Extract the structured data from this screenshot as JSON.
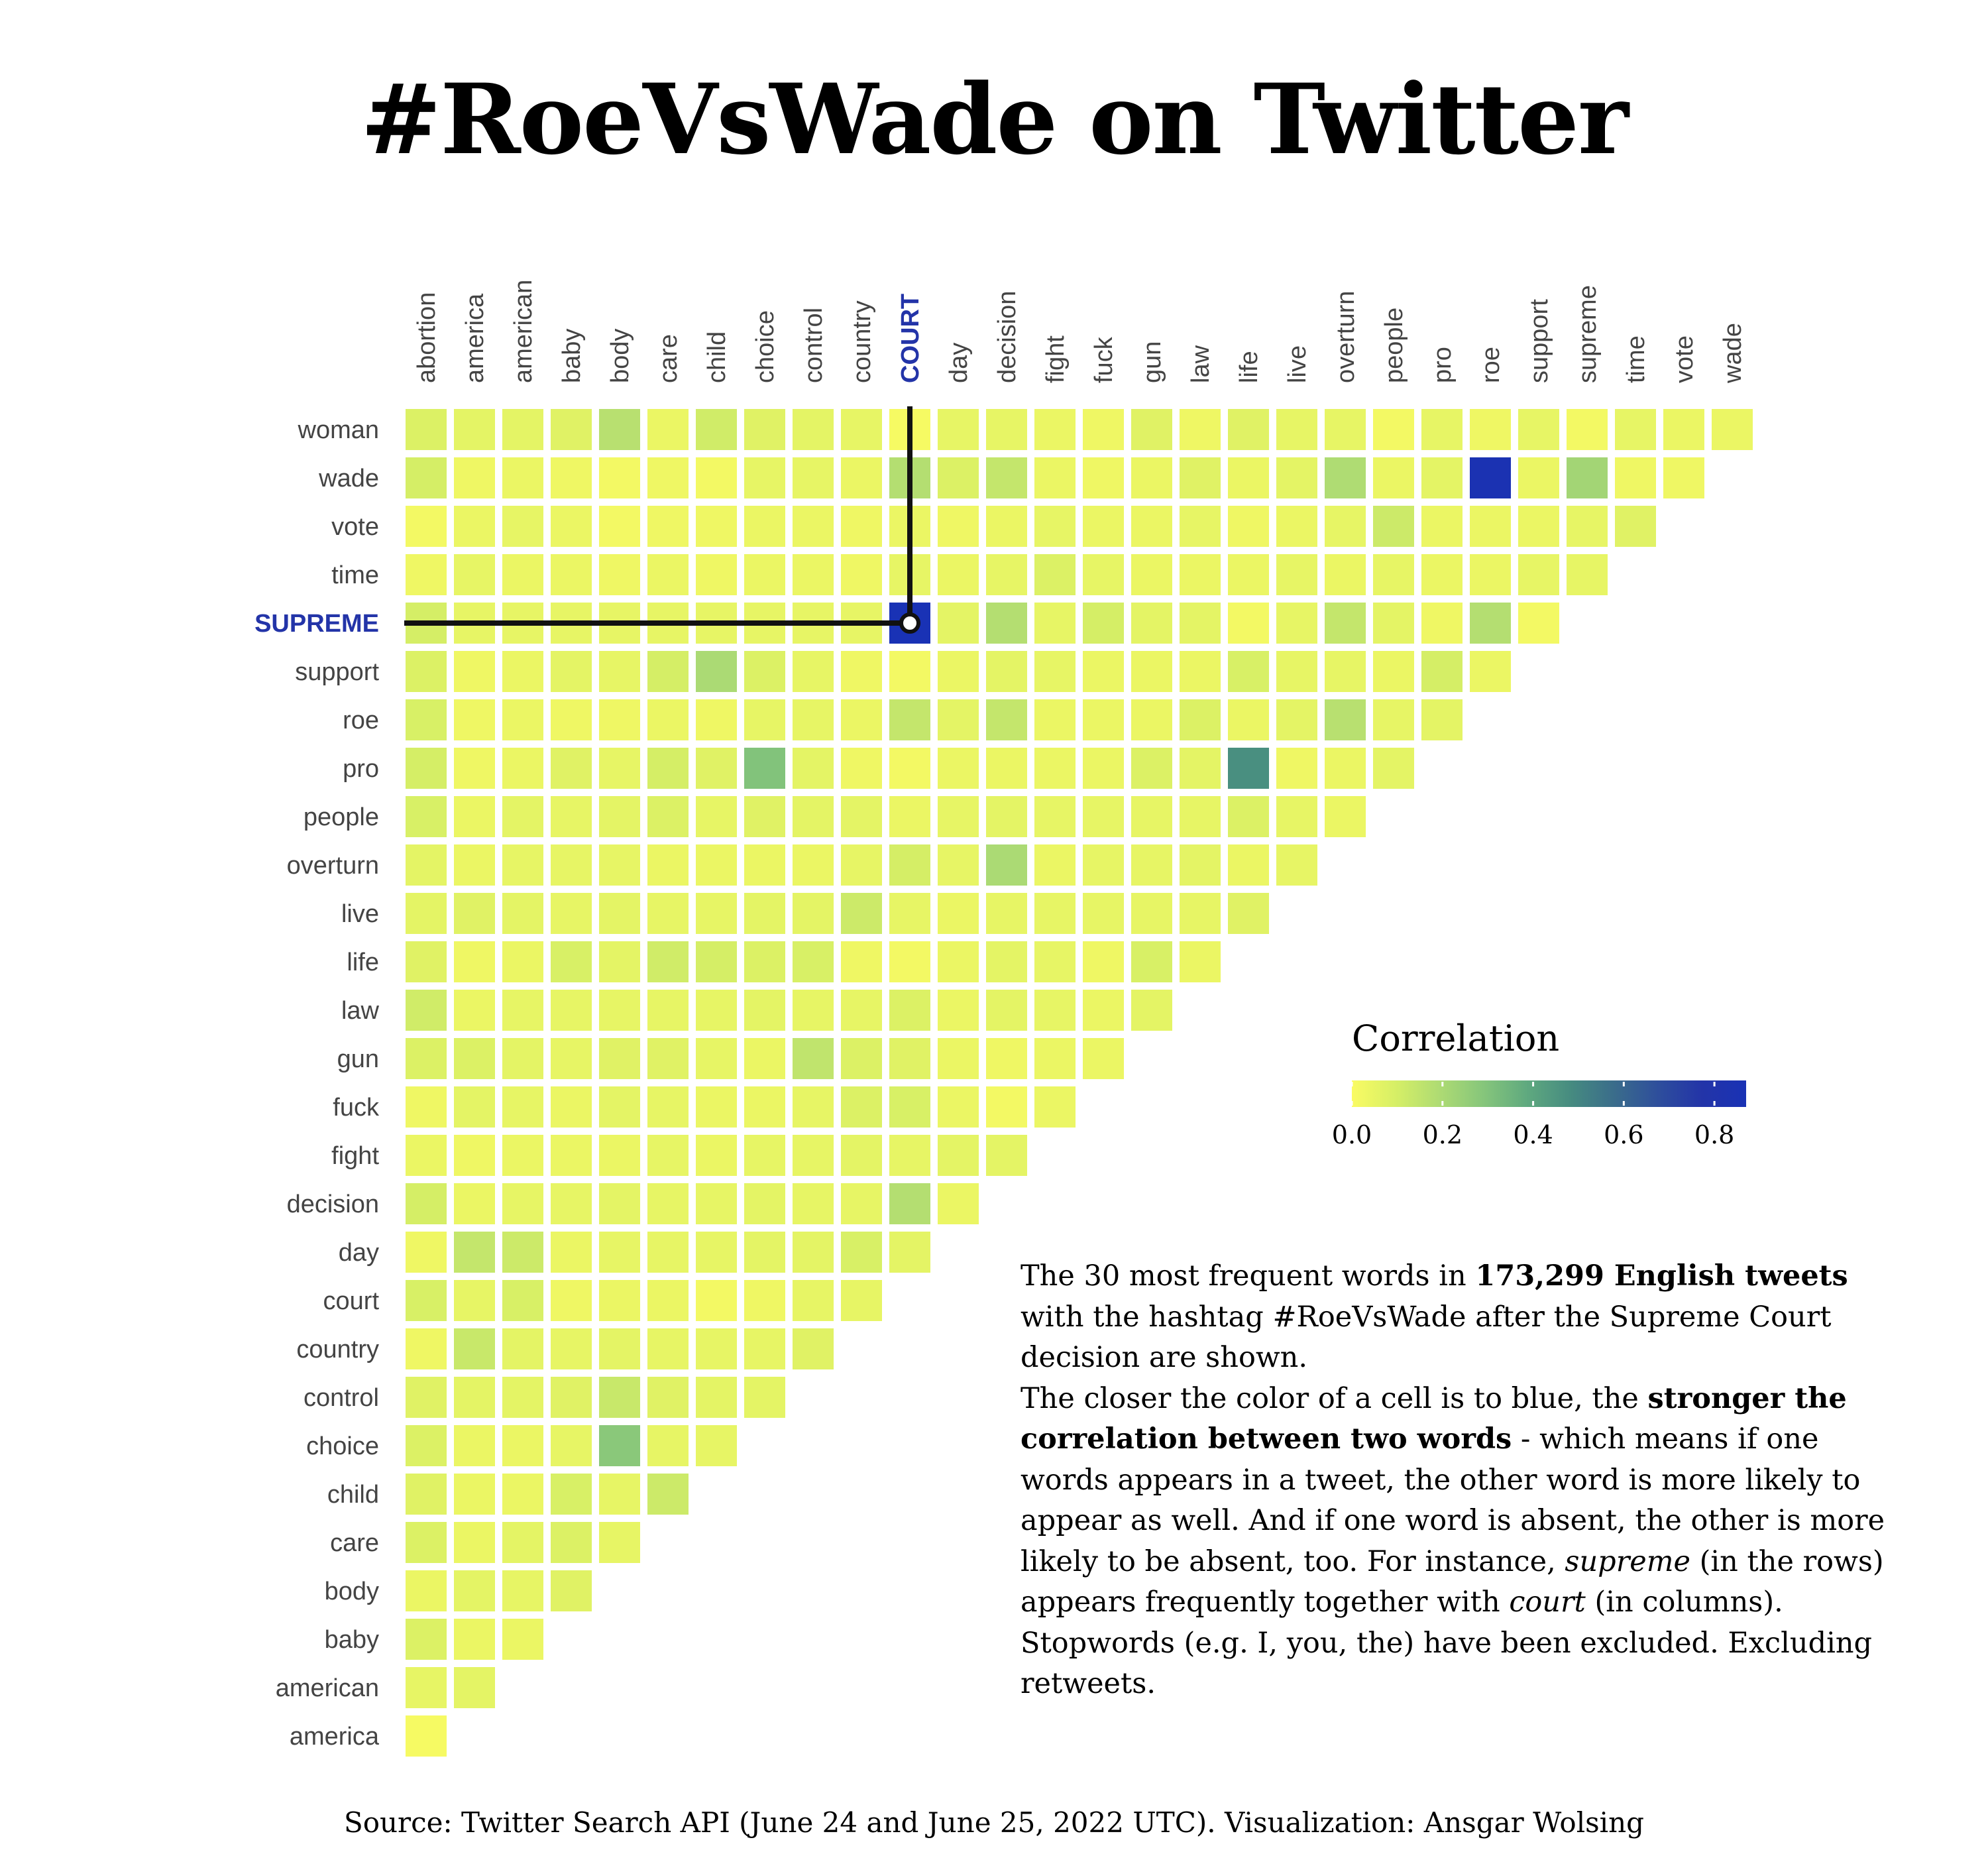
{
  "page": {
    "title": "#RoeVsWade on Twitter",
    "source": "Source: Twitter Search API (June 24 and June 25, 2022 UTC). Visualization: Ansgar Wolsing",
    "description": [
      [
        {
          "t": "The 30 most frequent words in "
        },
        {
          "t": "173,299 English tweets",
          "b": true
        },
        {
          "t": " with the hashtag #RoeVsWade after the Supreme Court decision are shown."
        }
      ],
      [
        {
          "t": "The closer the color of a cell is to blue, the "
        },
        {
          "t": "stronger the correlation between two words",
          "b": true
        },
        {
          "t": " - which means if one words appears in a tweet, the other word is more likely to appear as well. And if one word is absent, the other is more likely to be absent, too. For instance, "
        },
        {
          "t": "supreme",
          "i": true
        },
        {
          "t": " (in the rows) appears frequently together with "
        },
        {
          "t": "court",
          "i": true
        },
        {
          "t": " (in columns)."
        }
      ],
      [
        {
          "t": "Stopwords (e.g. I, you, the) have been excluded. Excluding retweets."
        }
      ]
    ]
  },
  "chart_data": {
    "type": "heatmap",
    "title": "#RoeVsWade on Twitter",
    "columns": [
      "abortion",
      "america",
      "american",
      "baby",
      "body",
      "care",
      "child",
      "choice",
      "control",
      "country",
      "COURT",
      "day",
      "decision",
      "fight",
      "fuck",
      "gun",
      "law",
      "life",
      "live",
      "overturn",
      "people",
      "pro",
      "roe",
      "support",
      "supreme",
      "time",
      "vote",
      "wade"
    ],
    "rows": [
      "woman",
      "wade",
      "vote",
      "time",
      "SUPREME",
      "support",
      "roe",
      "pro",
      "people",
      "overturn",
      "live",
      "life",
      "law",
      "gun",
      "fuck",
      "fight",
      "decision",
      "day",
      "court",
      "country",
      "control",
      "choice",
      "child",
      "care",
      "body",
      "baby",
      "american",
      "america"
    ],
    "highlight": {
      "row": "SUPREME",
      "column": "COURT",
      "value": 0.87
    },
    "values": [
      [
        0.08,
        0.06,
        0.06,
        0.07,
        0.17,
        0.04,
        0.11,
        0.07,
        0.06,
        0.05,
        0.01,
        0.05,
        0.05,
        0.04,
        0.03,
        0.07,
        0.03,
        0.07,
        0.05,
        0.05,
        0.02,
        0.05,
        0.03,
        0.05,
        0.02,
        0.05,
        0.04,
        0.04
      ],
      [
        0.1,
        0.03,
        0.04,
        0.03,
        0.02,
        0.03,
        0.02,
        0.05,
        0.05,
        0.04,
        0.18,
        0.08,
        0.14,
        0.04,
        0.03,
        0.04,
        0.07,
        0.04,
        0.06,
        0.19,
        0.04,
        0.06,
        0.85,
        0.04,
        0.22,
        0.03,
        0.03
      ],
      [
        0.02,
        0.04,
        0.05,
        0.04,
        0.02,
        0.03,
        0.03,
        0.04,
        0.04,
        0.03,
        0.04,
        0.03,
        0.04,
        0.05,
        0.04,
        0.04,
        0.05,
        0.03,
        0.04,
        0.05,
        0.12,
        0.04,
        0.04,
        0.04,
        0.05,
        0.07
      ],
      [
        0.03,
        0.05,
        0.04,
        0.04,
        0.03,
        0.04,
        0.03,
        0.04,
        0.04,
        0.03,
        0.05,
        0.04,
        0.05,
        0.08,
        0.05,
        0.04,
        0.04,
        0.04,
        0.05,
        0.04,
        0.05,
        0.04,
        0.04,
        0.05,
        0.05
      ],
      [
        0.1,
        0.05,
        0.05,
        0.05,
        0.05,
        0.05,
        0.05,
        0.05,
        0.05,
        0.05,
        0.87,
        0.06,
        0.18,
        0.05,
        0.1,
        0.06,
        0.06,
        0.02,
        0.05,
        0.14,
        0.06,
        0.03,
        0.18,
        0.02
      ],
      [
        0.08,
        0.03,
        0.04,
        0.06,
        0.05,
        0.1,
        0.2,
        0.08,
        0.05,
        0.03,
        0.02,
        0.04,
        0.06,
        0.05,
        0.04,
        0.04,
        0.04,
        0.09,
        0.05,
        0.05,
        0.04,
        0.1,
        0.04
      ],
      [
        0.09,
        0.03,
        0.04,
        0.03,
        0.03,
        0.04,
        0.03,
        0.05,
        0.05,
        0.04,
        0.14,
        0.06,
        0.14,
        0.04,
        0.04,
        0.04,
        0.08,
        0.04,
        0.06,
        0.17,
        0.05,
        0.06
      ],
      [
        0.1,
        0.03,
        0.04,
        0.07,
        0.05,
        0.1,
        0.07,
        0.3,
        0.06,
        0.03,
        0.02,
        0.04,
        0.04,
        0.04,
        0.04,
        0.08,
        0.06,
        0.47,
        0.03,
        0.04,
        0.06
      ],
      [
        0.09,
        0.04,
        0.06,
        0.05,
        0.06,
        0.08,
        0.05,
        0.07,
        0.06,
        0.06,
        0.04,
        0.05,
        0.06,
        0.05,
        0.05,
        0.05,
        0.05,
        0.08,
        0.05,
        0.04
      ],
      [
        0.06,
        0.04,
        0.05,
        0.05,
        0.05,
        0.04,
        0.04,
        0.04,
        0.04,
        0.05,
        0.1,
        0.05,
        0.2,
        0.04,
        0.05,
        0.05,
        0.06,
        0.04,
        0.05
      ],
      [
        0.06,
        0.07,
        0.06,
        0.05,
        0.06,
        0.05,
        0.05,
        0.06,
        0.06,
        0.12,
        0.05,
        0.04,
        0.05,
        0.05,
        0.05,
        0.05,
        0.05,
        0.07
      ],
      [
        0.07,
        0.03,
        0.04,
        0.09,
        0.06,
        0.11,
        0.1,
        0.08,
        0.09,
        0.03,
        0.02,
        0.04,
        0.06,
        0.05,
        0.03,
        0.09,
        0.04
      ],
      [
        0.11,
        0.04,
        0.05,
        0.05,
        0.05,
        0.05,
        0.05,
        0.06,
        0.05,
        0.05,
        0.08,
        0.04,
        0.06,
        0.05,
        0.04,
        0.06
      ],
      [
        0.08,
        0.08,
        0.06,
        0.05,
        0.07,
        0.07,
        0.05,
        0.04,
        0.15,
        0.08,
        0.07,
        0.04,
        0.03,
        0.04,
        0.04
      ],
      [
        0.03,
        0.06,
        0.05,
        0.04,
        0.06,
        0.05,
        0.04,
        0.04,
        0.05,
        0.08,
        0.09,
        0.04,
        0.02,
        0.04
      ],
      [
        0.04,
        0.03,
        0.04,
        0.04,
        0.04,
        0.05,
        0.04,
        0.05,
        0.05,
        0.06,
        0.05,
        0.06,
        0.06
      ],
      [
        0.1,
        0.04,
        0.05,
        0.05,
        0.06,
        0.05,
        0.05,
        0.06,
        0.05,
        0.05,
        0.18,
        0.04
      ],
      [
        0.03,
        0.14,
        0.12,
        0.04,
        0.05,
        0.05,
        0.05,
        0.06,
        0.06,
        0.09,
        0.06
      ],
      [
        0.09,
        0.05,
        0.09,
        0.03,
        0.04,
        0.04,
        0.02,
        0.03,
        0.05,
        0.05
      ],
      [
        0.03,
        0.13,
        0.06,
        0.05,
        0.06,
        0.05,
        0.05,
        0.05,
        0.07
      ],
      [
        0.07,
        0.06,
        0.06,
        0.07,
        0.13,
        0.07,
        0.06,
        0.06
      ],
      [
        0.08,
        0.04,
        0.04,
        0.05,
        0.28,
        0.05,
        0.05
      ],
      [
        0.07,
        0.04,
        0.04,
        0.09,
        0.05,
        0.12
      ],
      [
        0.08,
        0.04,
        0.06,
        0.08,
        0.05
      ],
      [
        0.04,
        0.06,
        0.05,
        0.07
      ],
      [
        0.08,
        0.04,
        0.04
      ],
      [
        0.05,
        0.06
      ],
      [
        0.01
      ]
    ],
    "legend": {
      "title": "Correlation",
      "range": [
        0,
        0.87
      ],
      "ticks": [
        "0.0",
        "0.2",
        "0.4",
        "0.6",
        "0.8"
      ],
      "tick_values": [
        0,
        0.2,
        0.4,
        0.6,
        0.8
      ],
      "colors": [
        "#fafb63",
        "#d6ef66",
        "#aedb73",
        "#86c67b",
        "#5fa97f",
        "#468b80",
        "#3a6c8b",
        "#2e4e9c",
        "#2334a8",
        "#1932b5"
      ]
    }
  }
}
